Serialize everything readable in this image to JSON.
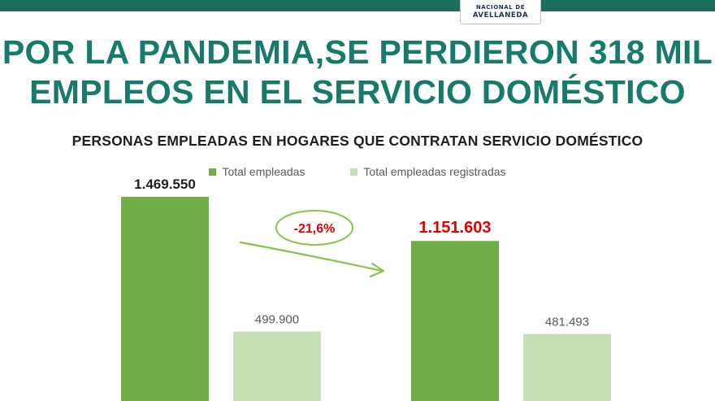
{
  "logo": {
    "line1": "NACIONAL DE",
    "line2": "AVELLANEDA"
  },
  "headline": {
    "line1": "POR LA PANDEMIA,SE PERDIERON 318 MIL",
    "line2": "EMPLEOS EN EL SERVICIO DOMÉSTICO"
  },
  "colors": {
    "band": "#1e6e5c",
    "headline": "#187a6a",
    "total": "#70ad47",
    "registered": "#c5e0b4",
    "highlight": "#e00000",
    "arrow": "#8bc34a"
  },
  "annotation": {
    "text": "-21,6%"
  },
  "chart_data": {
    "type": "bar",
    "title": "PERSONAS EMPLEADAS EN HOGARES QUE CONTRATAN SERVICIO DOMÉSTICO",
    "legend_position": "top",
    "grid": false,
    "ylim": [
      0,
      1750000
    ],
    "categories": [
      "",
      ""
    ],
    "series": [
      {
        "name": "Total empleadas",
        "color": "#70ad47",
        "values": [
          1469550,
          1151603
        ],
        "labels": [
          "1.469.550",
          "1.151.603"
        ]
      },
      {
        "name": "Total empleadas registradas",
        "color": "#c5e0b4",
        "values": [
          499900,
          481493
        ],
        "labels": [
          "499.900",
          "481.493"
        ]
      }
    ]
  }
}
